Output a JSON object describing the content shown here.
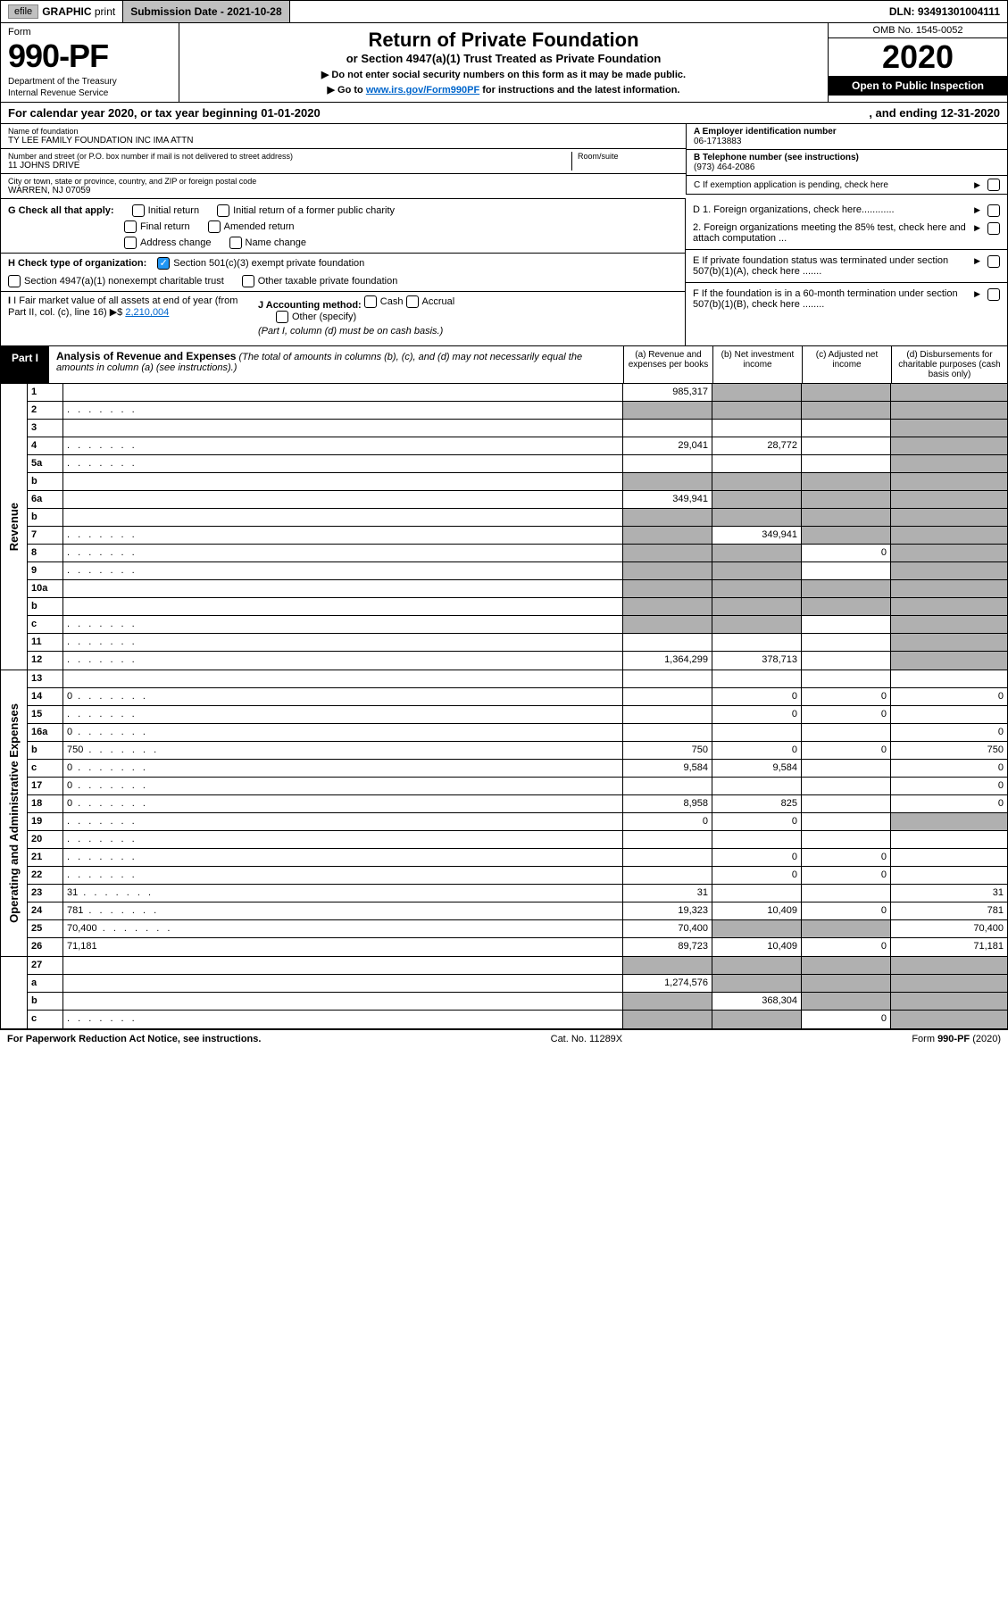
{
  "topbar": {
    "efile": "efile",
    "graphic": "GRAPHIC",
    "print": "print",
    "sub_label": "Submission Date - 2021-10-28",
    "dln": "DLN: 93491301004111"
  },
  "header": {
    "form_label": "Form",
    "form_number": "990-PF",
    "dept": "Department of the Treasury",
    "irs": "Internal Revenue Service",
    "title": "Return of Private Foundation",
    "subtitle": "or Section 4947(a)(1) Trust Treated as Private Foundation",
    "note1": "▶ Do not enter social security numbers on this form as it may be made public.",
    "note2_pre": "▶ Go to ",
    "note2_link": "www.irs.gov/Form990PF",
    "note2_post": " for instructions and the latest information.",
    "omb": "OMB No. 1545-0052",
    "year": "2020",
    "open": "Open to Public Inspection"
  },
  "calyear": {
    "text": "For calendar year 2020, or tax year beginning 01-01-2020",
    "ending": ", and ending 12-31-2020"
  },
  "entity": {
    "name_lbl": "Name of foundation",
    "name": "TY LEE FAMILY FOUNDATION INC IMA ATTN",
    "addr_lbl": "Number and street (or P.O. box number if mail is not delivered to street address)",
    "addr": "11 JOHNS DRIVE",
    "room_lbl": "Room/suite",
    "city_lbl": "City or town, state or province, country, and ZIP or foreign postal code",
    "city": "WARREN, NJ  07059",
    "ein_lbl": "A Employer identification number",
    "ein": "06-1713883",
    "phone_lbl": "B Telephone number (see instructions)",
    "phone": "(973) 464-2086",
    "c_lbl": "C If exemption application is pending, check here"
  },
  "g": {
    "label": "G Check all that apply:",
    "opts": [
      "Initial return",
      "Initial return of a former public charity",
      "Final return",
      "Amended return",
      "Address change",
      "Name change"
    ]
  },
  "h": {
    "label": "H Check type of organization:",
    "opt1": "Section 501(c)(3) exempt private foundation",
    "opt2": "Section 4947(a)(1) nonexempt charitable trust",
    "opt3": "Other taxable private foundation"
  },
  "i": {
    "label": "I Fair market value of all assets at end of year (from Part II, col. (c), line 16)",
    "val": "2,210,004",
    "j_label": "J Accounting method:",
    "j_cash": "Cash",
    "j_accrual": "Accrual",
    "j_other": "Other (specify)",
    "j_note": "(Part I, column (d) must be on cash basis.)"
  },
  "d": {
    "d1": "D 1. Foreign organizations, check here............",
    "d2": "2. Foreign organizations meeting the 85% test, check here and attach computation ...",
    "e": "E  If private foundation status was terminated under section 507(b)(1)(A), check here .......",
    "f": "F  If the foundation is in a 60-month termination under section 507(b)(1)(B), check here ........"
  },
  "part1": {
    "tab": "Part I",
    "title": "Analysis of Revenue and Expenses",
    "sub": "(The total of amounts in columns (b), (c), and (d) may not necessarily equal the amounts in column (a) (see instructions).)",
    "cols": [
      "(a)   Revenue and expenses per books",
      "(b)  Net investment income",
      "(c)  Adjusted net income",
      "(d)  Disbursements for charitable purposes (cash basis only)"
    ]
  },
  "revenue_label": "Revenue",
  "expense_label": "Operating and Administrative Expenses",
  "rows": [
    {
      "n": "1",
      "d": "",
      "a": "985,317",
      "b": "",
      "c": "",
      "sb": true,
      "sc": true,
      "sd": true
    },
    {
      "n": "2",
      "d": "",
      "a": "",
      "b": "",
      "c": "",
      "sa": true,
      "sb": true,
      "sc": true,
      "sd": true,
      "dotted": true
    },
    {
      "n": "3",
      "d": "",
      "a": "",
      "b": "",
      "c": "",
      "sd": true
    },
    {
      "n": "4",
      "d": "",
      "a": "29,041",
      "b": "28,772",
      "c": "",
      "sd": true,
      "dotted": true
    },
    {
      "n": "5a",
      "d": "",
      "a": "",
      "b": "",
      "c": "",
      "sd": true,
      "dotted": true
    },
    {
      "n": "b",
      "d": "",
      "a": "",
      "b": "",
      "c": "",
      "sa": true,
      "sb": true,
      "sc": true,
      "sd": true
    },
    {
      "n": "6a",
      "d": "",
      "a": "349,941",
      "b": "",
      "c": "",
      "sb": true,
      "sc": true,
      "sd": true
    },
    {
      "n": "b",
      "d": "",
      "a": "",
      "b": "",
      "c": "",
      "sa": true,
      "sb": true,
      "sc": true,
      "sd": true
    },
    {
      "n": "7",
      "d": "",
      "a": "",
      "b": "349,941",
      "c": "",
      "sa": true,
      "sc": true,
      "sd": true,
      "dotted": true
    },
    {
      "n": "8",
      "d": "",
      "a": "",
      "b": "",
      "c": "0",
      "sa": true,
      "sb": true,
      "sd": true,
      "dotted": true
    },
    {
      "n": "9",
      "d": "",
      "a": "",
      "b": "",
      "c": "",
      "sa": true,
      "sb": true,
      "sd": true,
      "dotted": true
    },
    {
      "n": "10a",
      "d": "",
      "a": "",
      "b": "",
      "c": "",
      "sa": true,
      "sb": true,
      "sc": true,
      "sd": true
    },
    {
      "n": "b",
      "d": "",
      "a": "",
      "b": "",
      "c": "",
      "sa": true,
      "sb": true,
      "sc": true,
      "sd": true
    },
    {
      "n": "c",
      "d": "",
      "a": "",
      "b": "",
      "c": "",
      "sa": true,
      "sb": true,
      "sd": true,
      "dotted": true
    },
    {
      "n": "11",
      "d": "",
      "a": "",
      "b": "",
      "c": "",
      "sd": true,
      "dotted": true
    },
    {
      "n": "12",
      "d": "",
      "a": "1,364,299",
      "b": "378,713",
      "c": "",
      "sd": true,
      "dotted": true
    }
  ],
  "exp_rows": [
    {
      "n": "13",
      "d": "",
      "a": "",
      "b": "",
      "c": ""
    },
    {
      "n": "14",
      "d": "0",
      "a": "",
      "b": "0",
      "c": "0",
      "dotted": true
    },
    {
      "n": "15",
      "d": "",
      "a": "",
      "b": "0",
      "c": "0",
      "dotted": true
    },
    {
      "n": "16a",
      "d": "0",
      "a": "",
      "b": "",
      "c": "",
      "dotted": true
    },
    {
      "n": "b",
      "d": "750",
      "a": "750",
      "b": "0",
      "c": "0",
      "dotted": true
    },
    {
      "n": "c",
      "d": "0",
      "a": "9,584",
      "b": "9,584",
      "c": "",
      "dotted": true
    },
    {
      "n": "17",
      "d": "0",
      "a": "",
      "b": "",
      "c": "",
      "dotted": true
    },
    {
      "n": "18",
      "d": "0",
      "a": "8,958",
      "b": "825",
      "c": "",
      "dotted": true
    },
    {
      "n": "19",
      "d": "",
      "a": "0",
      "b": "0",
      "c": "",
      "sd": true,
      "dotted": true
    },
    {
      "n": "20",
      "d": "",
      "a": "",
      "b": "",
      "c": "",
      "dotted": true
    },
    {
      "n": "21",
      "d": "",
      "a": "",
      "b": "0",
      "c": "0",
      "dotted": true
    },
    {
      "n": "22",
      "d": "",
      "a": "",
      "b": "0",
      "c": "0",
      "dotted": true
    },
    {
      "n": "23",
      "d": "31",
      "a": "31",
      "b": "",
      "c": "",
      "dotted": true
    },
    {
      "n": "24",
      "d": "781",
      "a": "19,323",
      "b": "10,409",
      "c": "0",
      "dotted": true
    },
    {
      "n": "25",
      "d": "70,400",
      "a": "70,400",
      "b": "",
      "c": "",
      "sb": true,
      "sc": true,
      "dotted": true
    },
    {
      "n": "26",
      "d": "71,181",
      "a": "89,723",
      "b": "10,409",
      "c": "0"
    }
  ],
  "net_rows": [
    {
      "n": "27",
      "d": "",
      "a": "",
      "b": "",
      "c": "",
      "sa": true,
      "sb": true,
      "sc": true,
      "sd": true
    },
    {
      "n": "a",
      "d": "",
      "a": "1,274,576",
      "b": "",
      "c": "",
      "sb": true,
      "sc": true,
      "sd": true
    },
    {
      "n": "b",
      "d": "",
      "a": "",
      "b": "368,304",
      "c": "",
      "sa": true,
      "sc": true,
      "sd": true
    },
    {
      "n": "c",
      "d": "",
      "a": "",
      "b": "",
      "c": "0",
      "sa": true,
      "sb": true,
      "sd": true,
      "dotted": true
    }
  ],
  "footer": {
    "left": "For Paperwork Reduction Act Notice, see instructions.",
    "mid": "Cat. No. 11289X",
    "right": "Form 990-PF (2020)"
  }
}
